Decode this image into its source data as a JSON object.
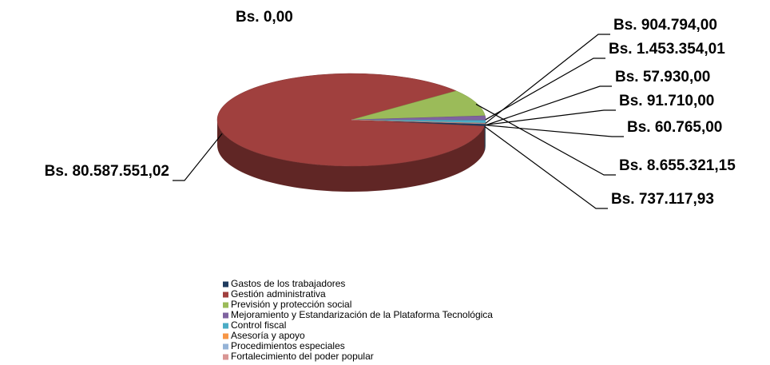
{
  "chart_data": {
    "type": "pie",
    "categories": [
      "Gastos de los trabajadores",
      "Gestión administrativa",
      "Previsión y protección social",
      "Mejoramiento y Estandarización de la Plataforma Tecnológica",
      "Control fiscal",
      "Asesoría y apoyo",
      "Procedimientos especiales",
      "Fortalecimiento del poder popular",
      null
    ],
    "values": [
      737117.93,
      80587551.02,
      8655321.15,
      1453354.01,
      904794.0,
      91710.0,
      60765.0,
      57930.0,
      0
    ],
    "value_labels": [
      "Bs. 737.117,93",
      "Bs. 80.587.551,02",
      "Bs. 8.655.321,15",
      "Bs. 1.453.354,01",
      "Bs. 904.794,00",
      "Bs. 91.710,00",
      "Bs. 60.765,00",
      "Bs. 57.930,00",
      "Bs. 0,00"
    ],
    "colors": [
      "#1f3b5e",
      "#a0403e",
      "#9bbb59",
      "#7f63a0",
      "#4bacc6",
      "#f79646",
      "#95b3d7",
      "#d99694",
      "#4f81bd"
    ],
    "legend": "bottom"
  }
}
